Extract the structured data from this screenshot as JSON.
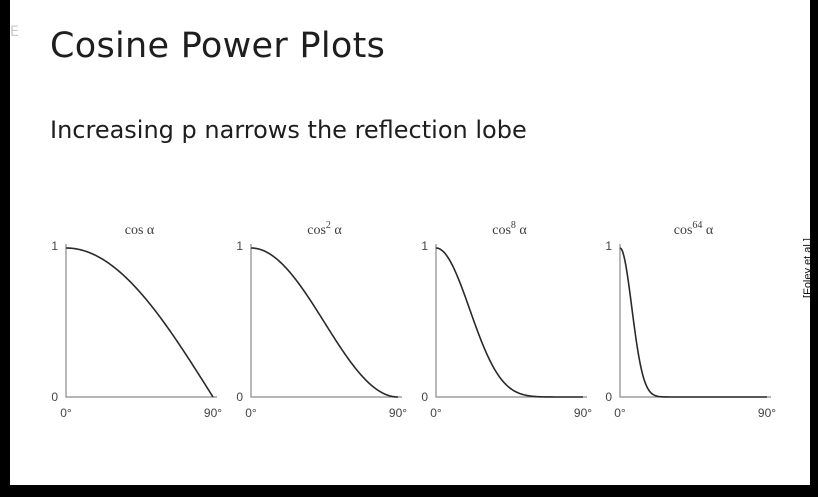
{
  "slide": {
    "title": "Cosine Power Plots",
    "subtitle": "Increasing p narrows the reflection lobe",
    "credit": "[Foley et al.]"
  },
  "watermark_label": "E",
  "colors": {
    "background": "#ffffff",
    "frame": "#000000",
    "curve": "#2a2a2a",
    "axis": "#8a8a8a"
  },
  "chart_data": [
    {
      "type": "line",
      "function": "cos",
      "exponent": 1,
      "title_base": "cos",
      "title_exponent": "",
      "title_variable": "α",
      "x_range_degrees": [
        0,
        90
      ],
      "y_range": [
        0,
        1
      ],
      "x_tick_labels": [
        "0°",
        "90°"
      ],
      "y_tick_labels": [
        "0",
        "1"
      ]
    },
    {
      "type": "line",
      "function": "cos",
      "exponent": 2,
      "title_base": "cos",
      "title_exponent": "2",
      "title_variable": "α",
      "x_range_degrees": [
        0,
        90
      ],
      "y_range": [
        0,
        1
      ],
      "x_tick_labels": [
        "0°",
        "90°"
      ],
      "y_tick_labels": [
        "0",
        "1"
      ]
    },
    {
      "type": "line",
      "function": "cos",
      "exponent": 8,
      "title_base": "cos",
      "title_exponent": "8",
      "title_variable": "α",
      "x_range_degrees": [
        0,
        90
      ],
      "y_range": [
        0,
        1
      ],
      "x_tick_labels": [
        "0°",
        "90°"
      ],
      "y_tick_labels": [
        "0",
        "1"
      ]
    },
    {
      "type": "line",
      "function": "cos",
      "exponent": 64,
      "title_base": "cos",
      "title_exponent": "64",
      "title_variable": "α",
      "x_range_degrees": [
        0,
        90
      ],
      "y_range": [
        0,
        1
      ],
      "x_tick_labels": [
        "0°",
        "90°"
      ],
      "y_tick_labels": [
        "0",
        "1"
      ]
    }
  ]
}
